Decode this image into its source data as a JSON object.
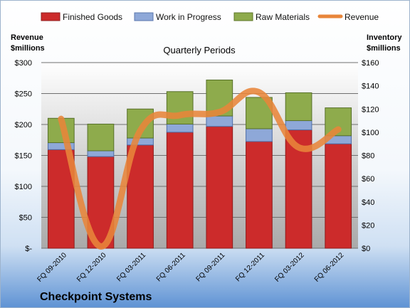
{
  "chart_data": {
    "type": "bar",
    "subtitle": "Quarterly Periods",
    "company": "Checkpoint Systems",
    "categories": [
      "FQ 09-2010",
      "FQ 12-2010",
      "FQ 03-2011",
      "FQ 06-2011",
      "FQ 09-2011",
      "FQ 12-2011",
      "FQ 03-2012",
      "FQ 06-2012"
    ],
    "left_axis": {
      "label_line1": "Revenue",
      "label_line2": "$millions",
      "ticks": [
        "$300",
        "$250",
        "$200",
        "$150",
        "$100",
        "$50",
        "$-"
      ],
      "range": [
        0,
        300
      ]
    },
    "right_axis": {
      "label_line1": "Inventory",
      "label_line2": "$millions",
      "ticks": [
        "$160",
        "$140",
        "$120",
        "$100",
        "$80",
        "$60",
        "$40",
        "$20",
        "$0"
      ],
      "range": [
        0,
        160
      ]
    },
    "series": [
      {
        "name": "Finished Goods",
        "axis": "right",
        "stacked": true,
        "color": "#cc2b2b",
        "values": [
          85,
          79,
          89,
          100,
          105,
          92,
          102,
          90
        ]
      },
      {
        "name": "Work in Progress",
        "axis": "right",
        "stacked": true,
        "color": "#8ea8d8",
        "values": [
          6,
          5,
          6,
          7,
          9,
          11,
          8,
          7
        ]
      },
      {
        "name": "Raw Materials",
        "axis": "right",
        "stacked": true,
        "color": "#8eab4c",
        "values": [
          21,
          23,
          25,
          28,
          31,
          27,
          24,
          24
        ]
      },
      {
        "name": "Revenue",
        "axis": "left",
        "type": "line",
        "color": "#e8853a",
        "values": [
          209,
          3,
          190,
          215,
          220,
          252,
          163,
          192
        ]
      }
    ],
    "grid": true,
    "legend_position": "top"
  }
}
